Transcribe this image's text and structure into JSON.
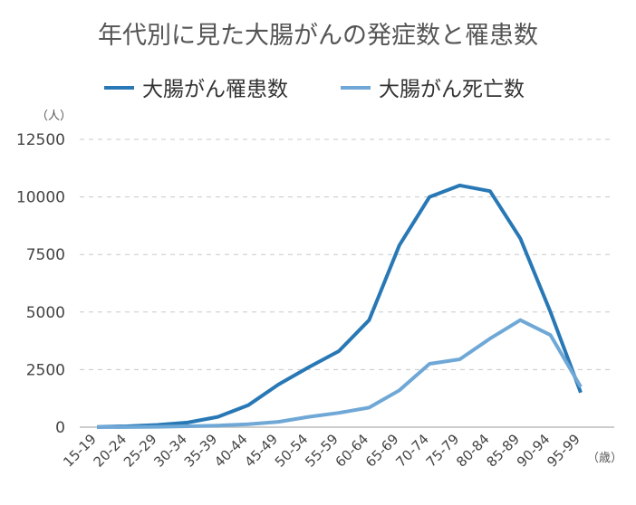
{
  "chart_data": {
    "type": "line",
    "title": "年代別に見た大腸がんの発症数と罹患数",
    "y_unit": "（人）",
    "x_unit": "（歳）",
    "categories": [
      "15-19",
      "20-24",
      "25-29",
      "30-34",
      "35-39",
      "40-44",
      "45-49",
      "50-54",
      "55-59",
      "60-64",
      "65-69",
      "70-74",
      "75-79",
      "80-84",
      "85-89",
      "90-94",
      "95-99"
    ],
    "yticks": [
      "0",
      "2500",
      "5000",
      "7500",
      "10000",
      "12500"
    ],
    "ylim": [
      0,
      12500
    ],
    "grid": true,
    "legend_position": "top",
    "series": [
      {
        "name": "大腸がん罹患数",
        "color": "#2878b5",
        "values": [
          10,
          40,
          100,
          200,
          450,
          950,
          1850,
          2600,
          3300,
          4650,
          7900,
          10000,
          10500,
          10250,
          8200,
          5000,
          1500
        ]
      },
      {
        "name": "大腸がん死亡数",
        "color": "#6fa8d6",
        "values": [
          0,
          5,
          15,
          40,
          70,
          130,
          230,
          450,
          620,
          850,
          1600,
          2750,
          2950,
          3850,
          4650,
          4000,
          1750
        ]
      }
    ]
  }
}
